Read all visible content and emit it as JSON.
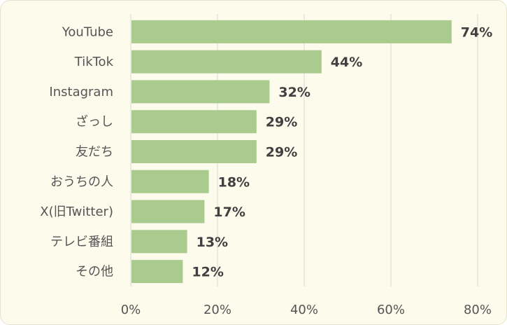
{
  "chart_data": {
    "type": "bar",
    "orientation": "horizontal",
    "categories": [
      "YouTube",
      "TikTok",
      "Instagram",
      "ざっし",
      "友だち",
      "おうちの人",
      "X(旧Twitter)",
      "テレビ番組",
      "その他"
    ],
    "values": [
      74,
      44,
      32,
      29,
      29,
      18,
      17,
      13,
      12
    ],
    "value_labels": [
      "74%",
      "44%",
      "32%",
      "29%",
      "29%",
      "18%",
      "17%",
      "13%",
      "12%"
    ],
    "x_ticks": [
      0,
      20,
      40,
      60,
      80
    ],
    "x_tick_labels": [
      "0%",
      "20%",
      "40%",
      "60%",
      "80%"
    ],
    "xlim": [
      0,
      80
    ],
    "grid": true,
    "colors": {
      "bar": "#a9cb8e",
      "grid": "#d9d9d9",
      "background": "#fdfbec"
    }
  }
}
